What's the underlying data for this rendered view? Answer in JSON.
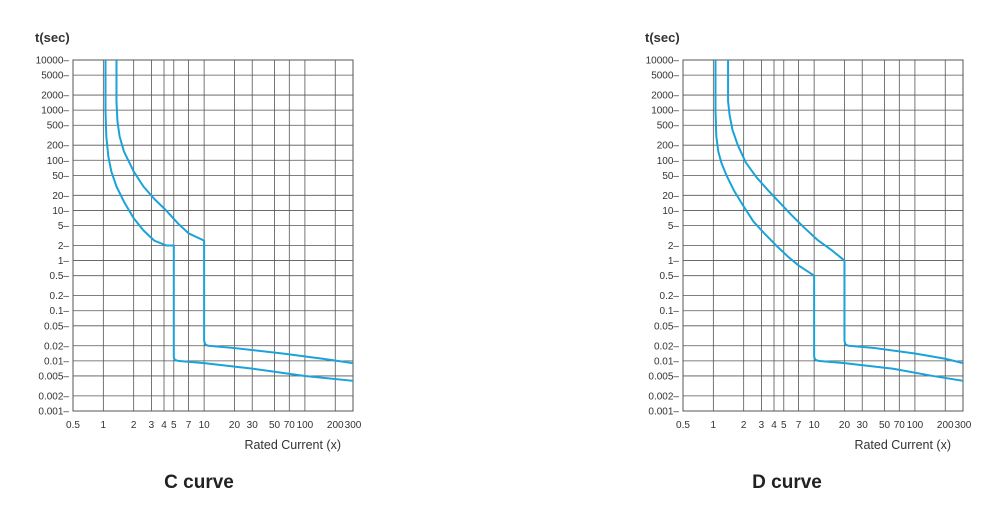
{
  "chart_data": [
    {
      "type": "line",
      "title": "C  curve",
      "ylabel": "t(sec)",
      "xlabel": "Rated Current (x)",
      "xscale": "log",
      "yscale": "log",
      "xlim": [
        0.5,
        300
      ],
      "ylim": [
        0.001,
        10000
      ],
      "x_ticks": [
        "0.5",
        "1",
        "2",
        "3",
        "4",
        "5",
        "7",
        "10",
        "20",
        "30",
        "50",
        "70",
        "100",
        "200",
        "300"
      ],
      "y_ticks": [
        "10000",
        "5000",
        "2000",
        "1000",
        "500",
        "200",
        "100",
        "50",
        "20",
        "10",
        "5",
        "2",
        "1",
        "0.5",
        "0.2",
        "0.1",
        "0.05",
        "0.02",
        "0.01",
        "0.005",
        "0.002",
        "0.001"
      ],
      "grid": true,
      "series_color": "#1aa3d9",
      "series": [
        {
          "x": [
            1.05,
            1.05,
            1.07,
            1.12,
            1.2,
            1.35,
            1.6,
            2,
            2.5,
            3.2,
            4.2,
            5,
            5,
            5.1,
            5.5,
            10,
            30,
            100,
            300
          ],
          "y": [
            10000,
            1000,
            300,
            120,
            60,
            30,
            15,
            7,
            4,
            2.5,
            2,
            2,
            0.012,
            0.0105,
            0.01,
            0.009,
            0.007,
            0.005,
            0.004
          ]
        },
        {
          "x": [
            1.35,
            1.35,
            1.38,
            1.45,
            1.6,
            2,
            2.5,
            3.2,
            4.2,
            5.5,
            7,
            10,
            10,
            10.3,
            11,
            20,
            60,
            150,
            300
          ],
          "y": [
            10000,
            1500,
            600,
            300,
            150,
            60,
            30,
            17,
            10,
            5.5,
            3.5,
            2.5,
            0.025,
            0.021,
            0.02,
            0.018,
            0.014,
            0.011,
            0.009
          ]
        }
      ]
    },
    {
      "type": "line",
      "title": "D  curve",
      "ylabel": "t(sec)",
      "xlabel": "Rated Current (x)",
      "xscale": "log",
      "yscale": "log",
      "xlim": [
        0.5,
        300
      ],
      "ylim": [
        0.001,
        10000
      ],
      "x_ticks": [
        "0.5",
        "1",
        "2",
        "3",
        "4",
        "5",
        "7",
        "10",
        "20",
        "30",
        "50",
        "70",
        "100",
        "200",
        "300"
      ],
      "y_ticks": [
        "10000",
        "5000",
        "2000",
        "1000",
        "500",
        "200",
        "100",
        "50",
        "20",
        "10",
        "5",
        "2",
        "1",
        "0.5",
        "0.2",
        "0.1",
        "0.05",
        "0.02",
        "0.01",
        "0.005",
        "0.002",
        "0.001"
      ],
      "grid": true,
      "series_color": "#1aa3d9",
      "series": [
        {
          "x": [
            1.05,
            1.05,
            1.07,
            1.12,
            1.2,
            1.35,
            1.6,
            2,
            2.5,
            3.2,
            4.2,
            5.5,
            7,
            10,
            10,
            10.3,
            11,
            20,
            60,
            150,
            300
          ],
          "y": [
            10000,
            1000,
            300,
            150,
            90,
            50,
            25,
            12,
            6,
            3.5,
            2,
            1.2,
            0.8,
            0.5,
            0.012,
            0.0105,
            0.01,
            0.009,
            0.007,
            0.005,
            0.004
          ]
        },
        {
          "x": [
            1.4,
            1.4,
            1.45,
            1.55,
            1.75,
            2.1,
            2.7,
            3.5,
            4.6,
            6,
            8,
            11,
            15,
            20,
            20,
            20.5,
            22,
            40,
            100,
            200,
            300
          ],
          "y": [
            10000,
            1500,
            800,
            400,
            200,
            90,
            45,
            25,
            14,
            8,
            4.5,
            2.5,
            1.6,
            1,
            0.025,
            0.021,
            0.02,
            0.018,
            0.014,
            0.011,
            0.009
          ]
        }
      ]
    }
  ]
}
